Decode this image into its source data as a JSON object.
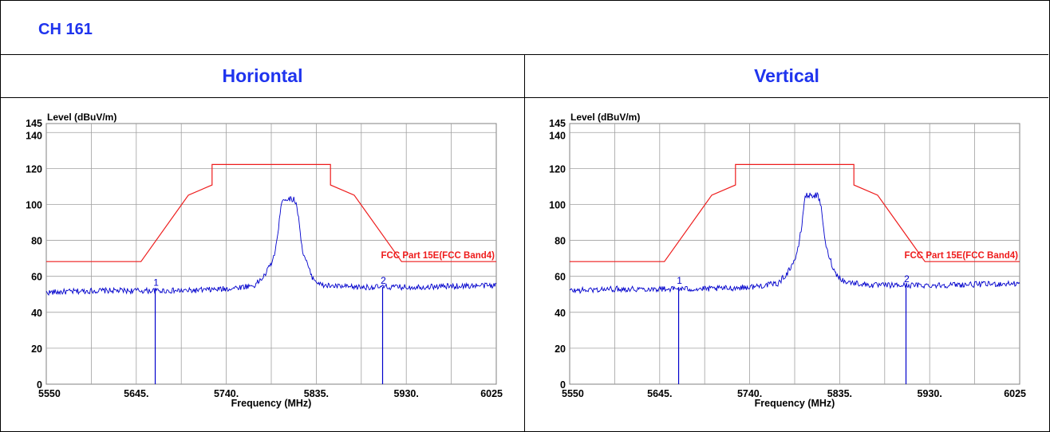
{
  "header": {
    "title": "CH 161"
  },
  "columns": [
    {
      "label": "Horiontal"
    },
    {
      "label": "Vertical"
    }
  ],
  "colors": {
    "header_text": "#1f34ee",
    "trace": "#0000cc",
    "limit": "#ee1c1c",
    "grid": "#a0a0a0"
  },
  "chart_data": [
    {
      "type": "line",
      "title": "",
      "xlabel": "Frequency (MHz)",
      "ylabel": "Level (dBuV/m)",
      "xlim": [
        5550,
        6025
      ],
      "ylim": [
        0,
        145
      ],
      "x_ticks": [
        5550,
        5645,
        5740,
        5835,
        5930,
        6025
      ],
      "x_tick_labels": [
        "5550",
        "5645.",
        "5740.",
        "5835.",
        "5930.",
        "6025"
      ],
      "y_ticks": [
        0,
        20,
        40,
        60,
        80,
        100,
        120,
        140,
        145
      ],
      "y_tick_labels": [
        "0",
        "20",
        "40",
        "60",
        "80",
        "100",
        "120",
        "140",
        "145"
      ],
      "grid": true,
      "series": [
        {
          "name": "FCC Part 15E(FCC Band4)",
          "x": [
            5550,
            5650,
            5700,
            5725,
            5725,
            5850,
            5850,
            5875,
            5925,
            6025
          ],
          "y": [
            68.2,
            68.2,
            105.2,
            110.8,
            122.2,
            122.2,
            110.8,
            105.2,
            68.2,
            68.2
          ]
        },
        {
          "name": "",
          "x": [
            5550,
            5600,
            5645,
            5700,
            5740,
            5770,
            5780,
            5790,
            5795,
            5798,
            5800,
            5812,
            5816,
            5820,
            5830,
            5840,
            5870,
            5930,
            6025
          ],
          "y": [
            51,
            52,
            52,
            52,
            53,
            55,
            60,
            70,
            85,
            102,
            103,
            103,
            95,
            75,
            60,
            55,
            54,
            54,
            55
          ]
        }
      ],
      "markers": [
        {
          "label": "1",
          "x": 5665,
          "y": 53
        },
        {
          "label": "2",
          "x": 5905,
          "y": 54
        }
      ]
    },
    {
      "type": "line",
      "title": "",
      "xlabel": "Frequency (MHz)",
      "ylabel": "Level (dBuV/m)",
      "xlim": [
        5550,
        6025
      ],
      "ylim": [
        0,
        145
      ],
      "x_ticks": [
        5550,
        5645,
        5740,
        5835,
        5930,
        6025
      ],
      "x_tick_labels": [
        "5550",
        "5645.",
        "5740.",
        "5835.",
        "5930.",
        "6025"
      ],
      "y_ticks": [
        0,
        20,
        40,
        60,
        80,
        100,
        120,
        140,
        145
      ],
      "y_tick_labels": [
        "0",
        "20",
        "40",
        "60",
        "80",
        "100",
        "120",
        "140",
        "145"
      ],
      "grid": true,
      "series": [
        {
          "name": "FCC Part 15E(FCC Band4)",
          "x": [
            5550,
            5650,
            5700,
            5725,
            5725,
            5850,
            5850,
            5875,
            5925,
            6025
          ],
          "y": [
            68.2,
            68.2,
            105.2,
            110.8,
            122.2,
            122.2,
            110.8,
            105.2,
            68.2,
            68.2
          ]
        },
        {
          "name": "",
          "x": [
            5550,
            5600,
            5645,
            5700,
            5740,
            5770,
            5780,
            5790,
            5795,
            5798,
            5800,
            5812,
            5816,
            5820,
            5830,
            5840,
            5870,
            5930,
            6025
          ],
          "y": [
            52,
            53,
            53,
            53,
            54,
            56,
            62,
            72,
            88,
            104,
            105,
            105,
            97,
            77,
            62,
            57,
            55,
            55,
            56
          ]
        }
      ],
      "markers": [
        {
          "label": "1",
          "x": 5665,
          "y": 54
        },
        {
          "label": "2",
          "x": 5905,
          "y": 55
        }
      ]
    }
  ]
}
